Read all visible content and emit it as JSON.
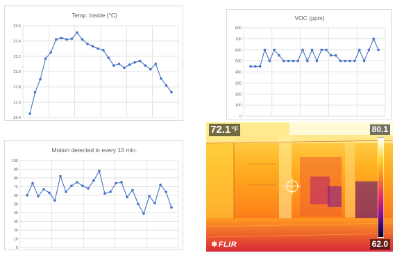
{
  "chart_data": [
    {
      "id": "temp",
      "type": "line",
      "title": "Temp. Inside (°C)",
      "ylim": [
        22.4,
        23.6
      ],
      "yticks": [
        22.4,
        22.6,
        22.8,
        23.0,
        23.2,
        23.4,
        23.6
      ],
      "ytick_labels": [
        "22.4",
        "22.6",
        "22.8",
        "23.0",
        "23.2",
        "23.4",
        "23.6"
      ],
      "x_gridlines": 6,
      "values": [
        22.45,
        22.73,
        22.9,
        23.17,
        23.25,
        23.42,
        23.44,
        23.42,
        23.43,
        23.51,
        23.42,
        23.36,
        23.33,
        23.3,
        23.28,
        23.18,
        23.08,
        23.1,
        23.05,
        23.09,
        23.12,
        23.14,
        23.08,
        23.03,
        23.1,
        22.91,
        22.82,
        22.73
      ]
    },
    {
      "id": "voc",
      "type": "line",
      "title": "VOC (ppm)",
      "ylim": [
        0,
        800
      ],
      "yticks": [
        0,
        100,
        200,
        300,
        400,
        500,
        600,
        700,
        800
      ],
      "ytick_labels": [
        "0",
        "100",
        "200",
        "300",
        "400",
        "500",
        "600",
        "700",
        "800"
      ],
      "x_gridlines": 5,
      "values": [
        450,
        450,
        450,
        600,
        500,
        600,
        550,
        500,
        500,
        500,
        500,
        600,
        500,
        600,
        500,
        600,
        600,
        550,
        550,
        500,
        500,
        500,
        500,
        600,
        500,
        600,
        700,
        600
      ]
    },
    {
      "id": "motion",
      "type": "line",
      "title": "Motion detected in every 10 min.",
      "ylim": [
        0,
        100
      ],
      "yticks": [
        0,
        10,
        20,
        30,
        40,
        50,
        60,
        70,
        80,
        90,
        100
      ],
      "ytick_labels": [
        "0",
        "10",
        "20",
        "30",
        "40",
        "50",
        "60",
        "70",
        "80",
        "90",
        "100"
      ],
      "x_gridlines": 5,
      "values": [
        60,
        74,
        59,
        67,
        63,
        54,
        82,
        64,
        71,
        75,
        71,
        68,
        77,
        88,
        62,
        64,
        74,
        75,
        58,
        66,
        50,
        39,
        59,
        51,
        72,
        64,
        46
      ]
    }
  ],
  "thermal_image": {
    "spot_temperature": "72.1",
    "spot_unit": "°F",
    "scale_max": "80.1",
    "scale_min": "62.0",
    "brand": "FLIR",
    "brand_icon": "flame-icon"
  },
  "colors": {
    "series": "#4472c4",
    "grid": "#d9d9d9",
    "text": "#595959"
  }
}
